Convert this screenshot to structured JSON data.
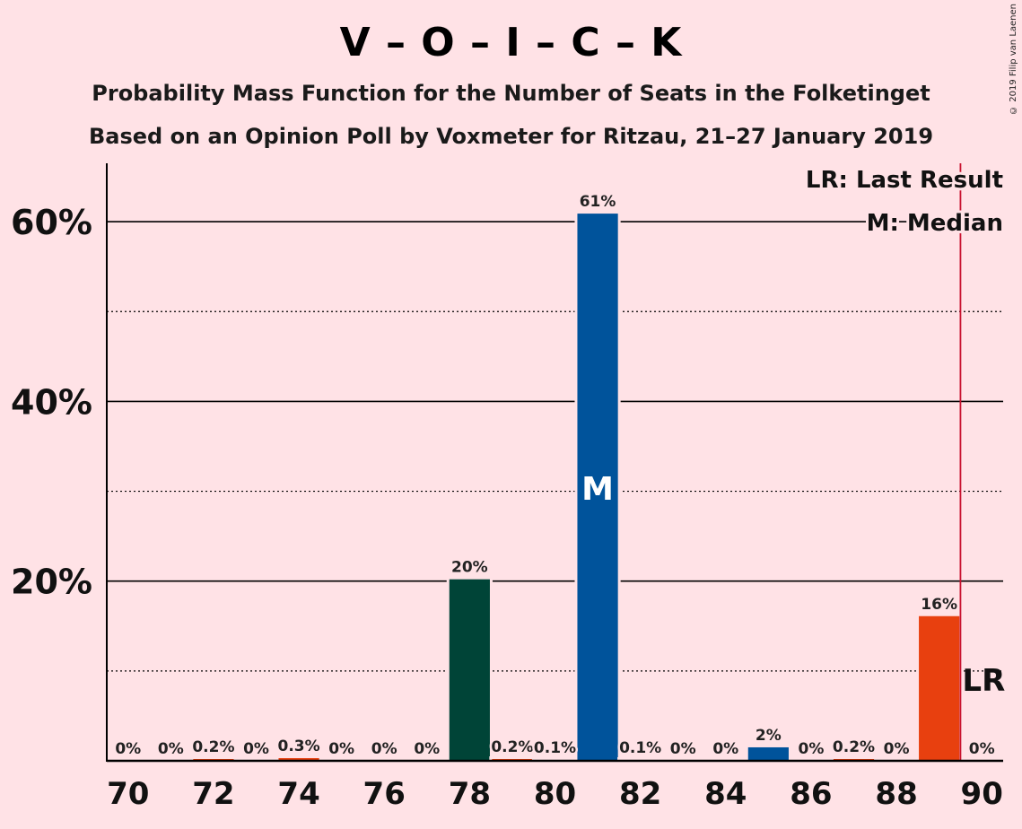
{
  "title": "V – O – I – C – K",
  "subtitle1": "Probability Mass Function for the Number of Seats in the Folketinget",
  "subtitle2": "Based on an Opinion Poll by Voxmeter for Ritzau, 21–27 January 2019",
  "copyright": "© 2019 Filip van Laenen",
  "legend": {
    "lr": "LR: Last Result",
    "median": "M: Median"
  },
  "markers": {
    "median_label": "M",
    "lr_label": "LR"
  },
  "chart_data": {
    "type": "bar",
    "x": [
      70,
      71,
      72,
      73,
      74,
      75,
      76,
      77,
      78,
      79,
      80,
      81,
      82,
      83,
      84,
      85,
      86,
      87,
      88,
      89,
      90
    ],
    "values": [
      0,
      0,
      0.2,
      0,
      0.3,
      0,
      0,
      0,
      20.2,
      0.2,
      0.1,
      60.9,
      0.1,
      0,
      0,
      1.5,
      0,
      0.2,
      0,
      16.1,
      0
    ],
    "data_labels": [
      "0%",
      "0%",
      "0.2%",
      "0%",
      "0.3%",
      "0%",
      "0%",
      "0%",
      "20%",
      "0.2%",
      "0.1%",
      "61%",
      "0.1%",
      "0%",
      "0%",
      "2%",
      "0%",
      "0.2%",
      "0%",
      "16%",
      "0%"
    ],
    "colors": [
      "#00539b",
      "#00539b",
      "#e8400f",
      "#00539b",
      "#e8400f",
      "#00539b",
      "#00539b",
      "#00539b",
      "#004437",
      "#e8400f",
      "#00539b",
      "#00539b",
      "#00539b",
      "#00539b",
      "#00539b",
      "#00539b",
      "#00539b",
      "#e8400f",
      "#00539b",
      "#e8400f",
      "#00539b"
    ],
    "x_ticks": [
      "70",
      "72",
      "74",
      "76",
      "78",
      "80",
      "82",
      "84",
      "86",
      "88",
      "90"
    ],
    "y_ticks": [
      "20%",
      "40%",
      "60%"
    ],
    "y_tick_values": [
      20,
      40,
      60
    ],
    "ylim": [
      0,
      66.5
    ],
    "minor_gridlines": [
      10,
      30,
      50
    ],
    "median": 81,
    "last_result": 89.5
  }
}
